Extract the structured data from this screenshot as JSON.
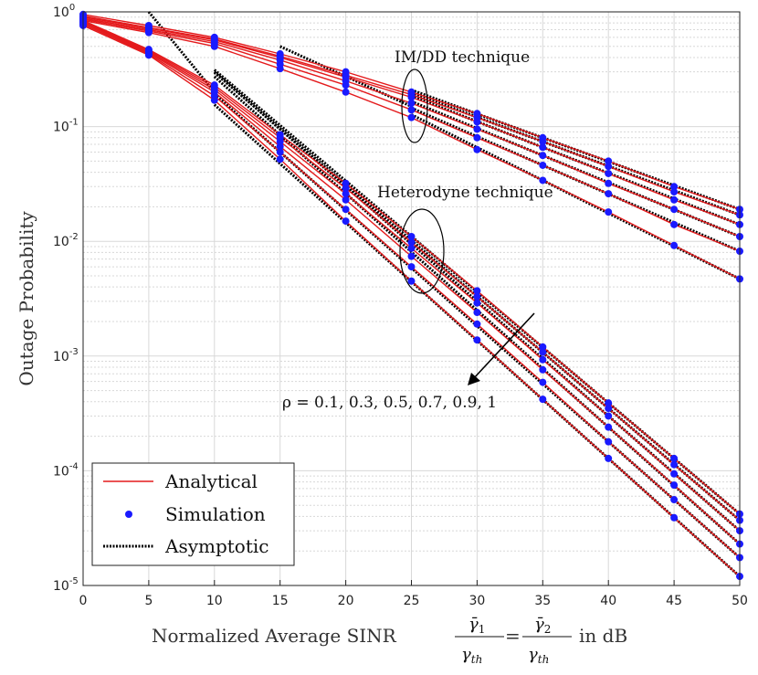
{
  "chart_data": {
    "type": "line",
    "xlabel": "Normalized Average SINR",
    "xlabel_fraction": {
      "num1": "γ̄",
      "num1_sub": "1",
      "den1": "γ",
      "den1_sub": "th",
      "eq": "=",
      "num2": "γ̄",
      "num2_sub": "2",
      "den2": "γ",
      "den2_sub": "th",
      "unit": "in dB"
    },
    "ylabel": "Outage Probability",
    "xlim": [
      0,
      50
    ],
    "ylim": [
      1e-05,
      1
    ],
    "yscale": "log",
    "grid": true,
    "x_ticks": [
      "0",
      "5",
      "10",
      "15",
      "20",
      "25",
      "30",
      "35",
      "40",
      "45",
      "50"
    ],
    "y_ticks": [
      {
        "base": "10",
        "exp": "0",
        "value": 1
      },
      {
        "base": "10",
        "exp": "-1",
        "value": 0.1
      },
      {
        "base": "10",
        "exp": "-2",
        "value": 0.01
      },
      {
        "base": "10",
        "exp": "-3",
        "value": 0.001
      },
      {
        "base": "10",
        "exp": "-4",
        "value": 0.0001
      },
      {
        "base": "10",
        "exp": "-5",
        "value": 1e-05
      }
    ],
    "x": [
      0,
      5,
      10,
      15,
      20,
      25,
      30,
      35,
      40,
      45,
      50
    ],
    "imdd": {
      "label": "IM/DD technique",
      "curves": [
        [
          0.95,
          0.76,
          0.6,
          0.43,
          0.3,
          0.2,
          0.13,
          0.08,
          0.05,
          0.03,
          0.019
        ],
        [
          0.92,
          0.73,
          0.58,
          0.41,
          0.28,
          0.19,
          0.12,
          0.074,
          0.045,
          0.027,
          0.017
        ],
        [
          0.9,
          0.72,
          0.57,
          0.4,
          0.27,
          0.18,
          0.11,
          0.066,
          0.039,
          0.023,
          0.014
        ],
        [
          0.88,
          0.7,
          0.55,
          0.38,
          0.25,
          0.16,
          0.095,
          0.056,
          0.032,
          0.019,
          0.011
        ],
        [
          0.86,
          0.68,
          0.53,
          0.35,
          0.23,
          0.14,
          0.08,
          0.046,
          0.026,
          0.014,
          0.0082
        ],
        [
          0.84,
          0.66,
          0.5,
          0.32,
          0.2,
          0.12,
          0.063,
          0.034,
          0.018,
          0.0092,
          0.0047
        ]
      ],
      "asymptotic_start": 25
    },
    "heterodyne": {
      "label": "Heterodyne technique",
      "curves": [
        [
          0.84,
          0.47,
          0.23,
          0.085,
          0.032,
          0.011,
          0.0037,
          0.0012,
          0.00039,
          0.000128,
          4.2e-05
        ],
        [
          0.82,
          0.46,
          0.22,
          0.08,
          0.029,
          0.0098,
          0.0033,
          0.00108,
          0.00035,
          0.000113,
          3.7e-05
        ],
        [
          0.81,
          0.45,
          0.21,
          0.074,
          0.026,
          0.0087,
          0.0029,
          0.00093,
          0.0003,
          9.4e-05,
          3e-05
        ],
        [
          0.8,
          0.44,
          0.2,
          0.067,
          0.023,
          0.0074,
          0.0024,
          0.00076,
          0.00024,
          7.5e-05,
          2.3e-05
        ],
        [
          0.78,
          0.43,
          0.185,
          0.06,
          0.019,
          0.006,
          0.0019,
          0.00059,
          0.000179,
          5.6e-05,
          1.75e-05
        ],
        [
          0.76,
          0.42,
          0.17,
          0.052,
          0.015,
          0.0045,
          0.00138,
          0.00042,
          0.000128,
          3.9e-05,
          1.2e-05
        ]
      ]
    },
    "rho_annotation": "ρ = 0.1, 0.3, 0.5, 0.7, 0.9, 1",
    "legend": {
      "placement": "bottom-left",
      "items": [
        "Analytical",
        "Simulation",
        "Asymptotic"
      ]
    },
    "colors": {
      "analytical": "#e41a1c",
      "simulation": "#1a1aff",
      "asymptotic": "#000000",
      "grid": "#d8d8d8"
    }
  }
}
